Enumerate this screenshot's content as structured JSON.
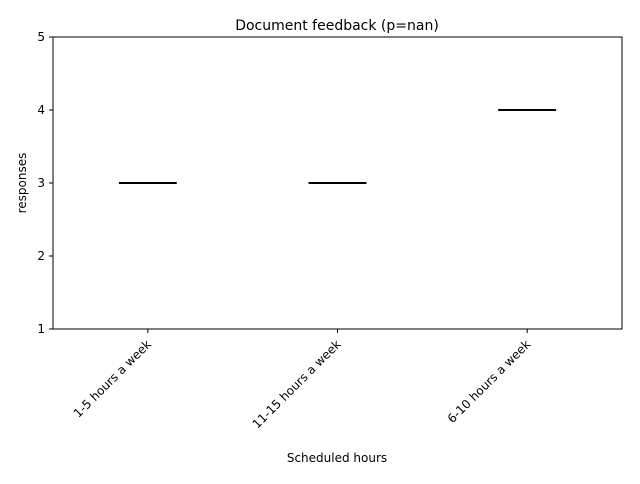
{
  "chart_data": {
    "type": "box",
    "title": "Document feedback (p=nan)",
    "xlabel": "Scheduled hours",
    "ylabel": "responses",
    "categories": [
      "1-5 hours a week",
      "11-15 hours a week",
      "6-10 hours a week"
    ],
    "values": [
      3,
      3,
      4
    ],
    "ylim": [
      1,
      5
    ],
    "yticks": [
      "1",
      "2",
      "3",
      "4",
      "5"
    ],
    "grid": false,
    "colors": {
      "axis": "#000000",
      "median": "#000000",
      "background": "#ffffff"
    }
  }
}
